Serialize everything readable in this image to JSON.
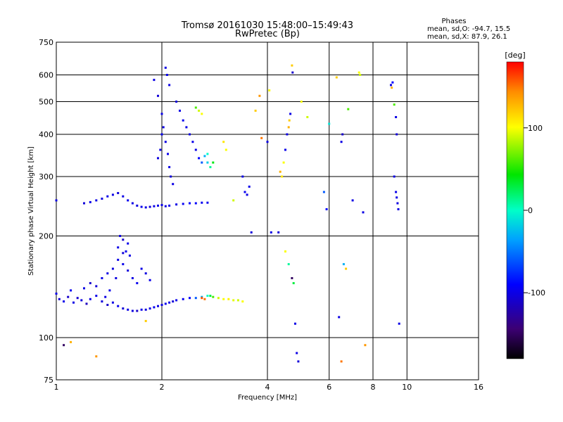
{
  "chart_data": {
    "type": "scatter",
    "title": "Tromsø 20161030 15:48:00–15:49:43",
    "subtitle": "RwPretec (Bp)",
    "xlabel": "Frequency [MHz]",
    "ylabel": "Stationary phase Virtual Height [km]",
    "x_scale": "log",
    "y_scale": "log",
    "xlim": [
      1,
      16
    ],
    "ylim": [
      75,
      750
    ],
    "x_ticks": [
      "1",
      "2",
      "4",
      "6",
      "8",
      "10",
      "16"
    ],
    "y_ticks": [
      "75",
      "100",
      "200",
      "300",
      "400",
      "500",
      "600",
      "750"
    ],
    "grid": true,
    "stats": {
      "heading": "Phases",
      "line_o": "mean, sd,O: -94.7, 15.5",
      "line_x": "mean, sd,X:  87.9, 26.1"
    },
    "colorbar": {
      "label": "[deg]",
      "range": [
        -180,
        180
      ],
      "ticks": [
        "100",
        "0",
        "-100"
      ],
      "tick_values": [
        100,
        0,
        -100
      ]
    },
    "series": [
      {
        "points": [
          [
            1.0,
            135,
            -100
          ],
          [
            1.02,
            130,
            -105
          ],
          [
            1.05,
            128,
            -98
          ],
          [
            1.08,
            132,
            -110
          ],
          [
            1.1,
            138,
            -95
          ],
          [
            1.12,
            127,
            -100
          ],
          [
            1.15,
            131,
            -108
          ],
          [
            1.18,
            129,
            -102
          ],
          [
            1.22,
            126,
            -115
          ],
          [
            1.25,
            130,
            -100
          ],
          [
            1.3,
            133,
            -98
          ],
          [
            1.35,
            128,
            -104
          ],
          [
            1.4,
            125,
            -110
          ],
          [
            1.45,
            127,
            -100
          ],
          [
            1.5,
            124,
            -96
          ],
          [
            1.55,
            122,
            -105
          ],
          [
            1.6,
            121,
            -100
          ],
          [
            1.65,
            120,
            -102
          ],
          [
            1.7,
            120,
            -110
          ],
          [
            1.75,
            121,
            -98
          ],
          [
            1.8,
            121,
            -104
          ],
          [
            1.85,
            122,
            -100
          ],
          [
            1.9,
            123,
            -96
          ],
          [
            1.95,
            124,
            -100
          ],
          [
            2.0,
            125,
            -102
          ],
          [
            2.05,
            126,
            -98
          ],
          [
            2.1,
            127,
            -100
          ],
          [
            2.15,
            128,
            -105
          ],
          [
            2.2,
            129,
            -98
          ],
          [
            2.3,
            130,
            -96
          ],
          [
            2.4,
            131,
            -90
          ],
          [
            2.5,
            131,
            -60
          ],
          [
            2.6,
            132,
            -30
          ],
          [
            2.7,
            133,
            0
          ],
          [
            2.75,
            133,
            30
          ],
          [
            2.8,
            132,
            60
          ],
          [
            2.9,
            131,
            90
          ],
          [
            3.0,
            130,
            100
          ],
          [
            3.1,
            130,
            105
          ],
          [
            3.2,
            129,
            95
          ],
          [
            3.3,
            129,
            90
          ],
          [
            3.4,
            128,
            100
          ]
        ]
      },
      {
        "points": [
          [
            1.2,
            140,
            -100
          ],
          [
            1.25,
            145,
            -110
          ],
          [
            1.3,
            142,
            -105
          ],
          [
            1.35,
            150,
            -98
          ],
          [
            1.4,
            155,
            -100
          ],
          [
            1.45,
            160,
            -102
          ],
          [
            1.5,
            170,
            -100
          ],
          [
            1.55,
            165,
            -98
          ],
          [
            1.6,
            158,
            -104
          ],
          [
            1.65,
            150,
            -100
          ],
          [
            1.7,
            145,
            -96
          ],
          [
            1.75,
            160,
            -100
          ],
          [
            1.8,
            155,
            -102
          ],
          [
            1.85,
            148,
            -98
          ],
          [
            1.5,
            185,
            -100
          ],
          [
            1.55,
            178,
            -104
          ],
          [
            1.6,
            190,
            -98
          ],
          [
            1.52,
            200,
            -100
          ],
          [
            1.55,
            195,
            -110
          ],
          [
            1.58,
            180,
            -96
          ],
          [
            1.62,
            175,
            -100
          ],
          [
            1.48,
            150,
            -102
          ],
          [
            1.42,
            138,
            -98
          ],
          [
            1.38,
            132,
            -100
          ]
        ]
      },
      {
        "points": [
          [
            1.0,
            255,
            -100
          ],
          [
            1.2,
            250,
            -105
          ],
          [
            1.25,
            252,
            -98
          ],
          [
            1.3,
            255,
            -100
          ],
          [
            1.35,
            258,
            -102
          ],
          [
            1.4,
            262,
            -98
          ],
          [
            1.45,
            265,
            -100
          ],
          [
            1.5,
            268,
            -104
          ],
          [
            1.55,
            262,
            -100
          ],
          [
            1.6,
            255,
            -96
          ],
          [
            1.65,
            250,
            -100
          ],
          [
            1.7,
            246,
            -102
          ],
          [
            1.75,
            244,
            -98
          ],
          [
            1.8,
            243,
            -100
          ],
          [
            1.85,
            244,
            -104
          ],
          [
            1.9,
            245,
            -100
          ],
          [
            1.95,
            246,
            -98
          ],
          [
            2.0,
            247,
            -100
          ],
          [
            2.05,
            245,
            -102
          ],
          [
            2.1,
            246,
            -98
          ],
          [
            2.2,
            248,
            -100
          ],
          [
            2.3,
            249,
            -95
          ],
          [
            2.4,
            250,
            -90
          ],
          [
            2.5,
            250,
            -92
          ],
          [
            2.6,
            251,
            -95
          ],
          [
            2.7,
            251,
            -96
          ]
        ]
      },
      {
        "points": [
          [
            1.9,
            580,
            -100
          ],
          [
            1.95,
            520,
            -105
          ],
          [
            2.0,
            460,
            -98
          ],
          [
            2.02,
            420,
            -100
          ],
          [
            2.05,
            380,
            -102
          ],
          [
            2.08,
            350,
            -98
          ],
          [
            2.1,
            320,
            -100
          ],
          [
            2.12,
            300,
            -104
          ],
          [
            2.15,
            285,
            -100
          ],
          [
            2.0,
            400,
            -96
          ],
          [
            1.98,
            360,
            -100
          ],
          [
            1.95,
            340,
            -102
          ],
          [
            2.05,
            630,
            -100
          ],
          [
            2.07,
            600,
            -98
          ],
          [
            2.1,
            560,
            -100
          ],
          [
            2.2,
            500,
            -104
          ],
          [
            2.25,
            470,
            -100
          ],
          [
            2.3,
            440,
            -96
          ],
          [
            2.35,
            420,
            -100
          ],
          [
            2.4,
            400,
            -102
          ],
          [
            2.45,
            380,
            -98
          ],
          [
            2.5,
            360,
            -100
          ],
          [
            2.55,
            340,
            -90
          ],
          [
            2.6,
            330,
            -60
          ],
          [
            2.65,
            345,
            -30
          ],
          [
            2.7,
            350,
            0
          ],
          [
            2.5,
            480,
            60
          ],
          [
            2.55,
            470,
            90
          ],
          [
            2.6,
            460,
            100
          ],
          [
            2.7,
            330,
            -20
          ],
          [
            2.75,
            320,
            10
          ],
          [
            2.8,
            330,
            40
          ]
        ]
      },
      {
        "points": [
          [
            3.0,
            380,
            110
          ],
          [
            3.05,
            360,
            100
          ],
          [
            3.2,
            255,
            90
          ],
          [
            3.4,
            300,
            -100
          ],
          [
            3.45,
            270,
            -95
          ],
          [
            3.5,
            265,
            -100
          ],
          [
            3.55,
            280,
            -98
          ],
          [
            3.6,
            205,
            -104
          ],
          [
            3.7,
            470,
            120
          ],
          [
            3.8,
            520,
            140
          ],
          [
            3.85,
            390,
            150
          ],
          [
            4.0,
            380,
            -100
          ],
          [
            4.05,
            540,
            100
          ],
          [
            4.1,
            205,
            -100
          ],
          [
            4.3,
            205,
            -105
          ],
          [
            4.35,
            310,
            130
          ],
          [
            4.4,
            300,
            110
          ],
          [
            4.45,
            330,
            100
          ],
          [
            4.5,
            360,
            -98
          ],
          [
            4.55,
            400,
            -100
          ],
          [
            4.6,
            420,
            130
          ],
          [
            4.62,
            440,
            120
          ],
          [
            4.65,
            460,
            -100
          ],
          [
            4.7,
            640,
            120
          ],
          [
            4.72,
            610,
            -110
          ],
          [
            4.5,
            180,
            100
          ],
          [
            4.6,
            165,
            10
          ],
          [
            4.7,
            150,
            -150
          ],
          [
            4.75,
            145,
            30
          ],
          [
            4.8,
            110,
            -100
          ],
          [
            4.85,
            90,
            -100
          ],
          [
            4.9,
            85,
            -105
          ],
          [
            5.0,
            500,
            100
          ],
          [
            5.2,
            450,
            90
          ],
          [
            5.8,
            270,
            -60
          ],
          [
            5.9,
            240,
            -90
          ],
          [
            6.0,
            430,
            -10
          ],
          [
            6.3,
            590,
            120
          ],
          [
            6.5,
            380,
            -100
          ],
          [
            6.55,
            400,
            -110
          ],
          [
            6.4,
            115,
            -100
          ],
          [
            6.5,
            85,
            150
          ],
          [
            6.6,
            165,
            -30
          ],
          [
            6.7,
            160,
            120
          ],
          [
            6.8,
            475,
            60
          ],
          [
            7.0,
            255,
            -100
          ],
          [
            7.3,
            610,
            100
          ],
          [
            7.35,
            600,
            90
          ],
          [
            7.5,
            235,
            -100
          ],
          [
            7.6,
            95,
            140
          ],
          [
            9.0,
            560,
            -100
          ],
          [
            9.05,
            550,
            130
          ],
          [
            9.1,
            570,
            -90
          ],
          [
            9.2,
            490,
            60
          ],
          [
            9.3,
            450,
            -100
          ],
          [
            9.35,
            400,
            -105
          ],
          [
            9.2,
            300,
            -100
          ],
          [
            9.3,
            270,
            -98
          ],
          [
            9.35,
            260,
            -100
          ],
          [
            9.4,
            250,
            -102
          ],
          [
            9.45,
            240,
            -100
          ],
          [
            9.5,
            110,
            -100
          ]
        ]
      },
      {
        "points": [
          [
            1.05,
            95,
            -150
          ],
          [
            1.1,
            97,
            130
          ],
          [
            1.3,
            88,
            140
          ],
          [
            1.8,
            112,
            120
          ],
          [
            2.6,
            131,
            160
          ],
          [
            2.65,
            130,
            150
          ]
        ]
      }
    ]
  }
}
